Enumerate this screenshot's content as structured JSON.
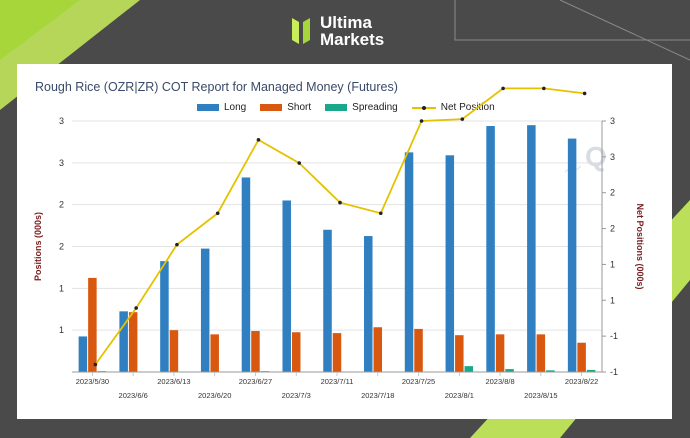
{
  "brand": {
    "line1": "Ultima",
    "line2": "Markets"
  },
  "colors": {
    "long": "#2f7fc1",
    "short": "#d9580f",
    "spreading": "#1aa78a",
    "net": "#e5c200",
    "net_marker": "#222222",
    "axis_label": "#7a1f1f"
  },
  "chart_data": {
    "type": "bar",
    "title": "Rough Rice (OZR|ZR) COT Report for Managed Money (Futures)",
    "ylabel": "Positions (000s)",
    "y2label": "Net Positions (000s)",
    "y_ticks": [
      "1",
      "1",
      "2",
      "2",
      "3",
      "3"
    ],
    "y2_ticks": [
      "-1",
      "-1",
      "1",
      "1",
      "2",
      "2",
      "3",
      "3"
    ],
    "ylim": [
      0,
      6
    ],
    "y2lim": [
      -1,
      3
    ],
    "grid": true,
    "legend_position": "top",
    "categories": [
      "2023/5/30",
      "2023/6/6",
      "2023/6/13",
      "2023/6/20",
      "2023/6/27",
      "2023/7/3",
      "2023/7/11",
      "2023/7/18",
      "2023/7/25",
      "2023/8/1",
      "2023/8/8",
      "2023/8/15",
      "2023/8/22"
    ],
    "series": [
      {
        "name": "Long",
        "kind": "bar",
        "values": [
          0.85,
          1.45,
          2.65,
          2.95,
          4.65,
          4.1,
          3.4,
          3.25,
          5.25,
          5.18,
          5.88,
          5.9,
          5.58
        ]
      },
      {
        "name": "Short",
        "kind": "bar",
        "values": [
          2.25,
          1.43,
          1.0,
          0.9,
          0.98,
          0.95,
          0.93,
          1.07,
          1.03,
          0.88,
          0.9,
          0.9,
          0.7
        ]
      },
      {
        "name": "Spreading",
        "kind": "bar",
        "values": [
          0.02,
          0.01,
          0.01,
          0.01,
          0.02,
          0.01,
          0.01,
          0.01,
          0.01,
          0.14,
          0.07,
          0.04,
          0.05
        ]
      },
      {
        "name": "Net Position",
        "kind": "line",
        "values": [
          -0.88,
          0.02,
          1.03,
          1.53,
          2.7,
          2.33,
          1.7,
          1.53,
          3.0,
          3.03,
          3.52,
          3.52,
          3.44
        ]
      }
    ]
  }
}
